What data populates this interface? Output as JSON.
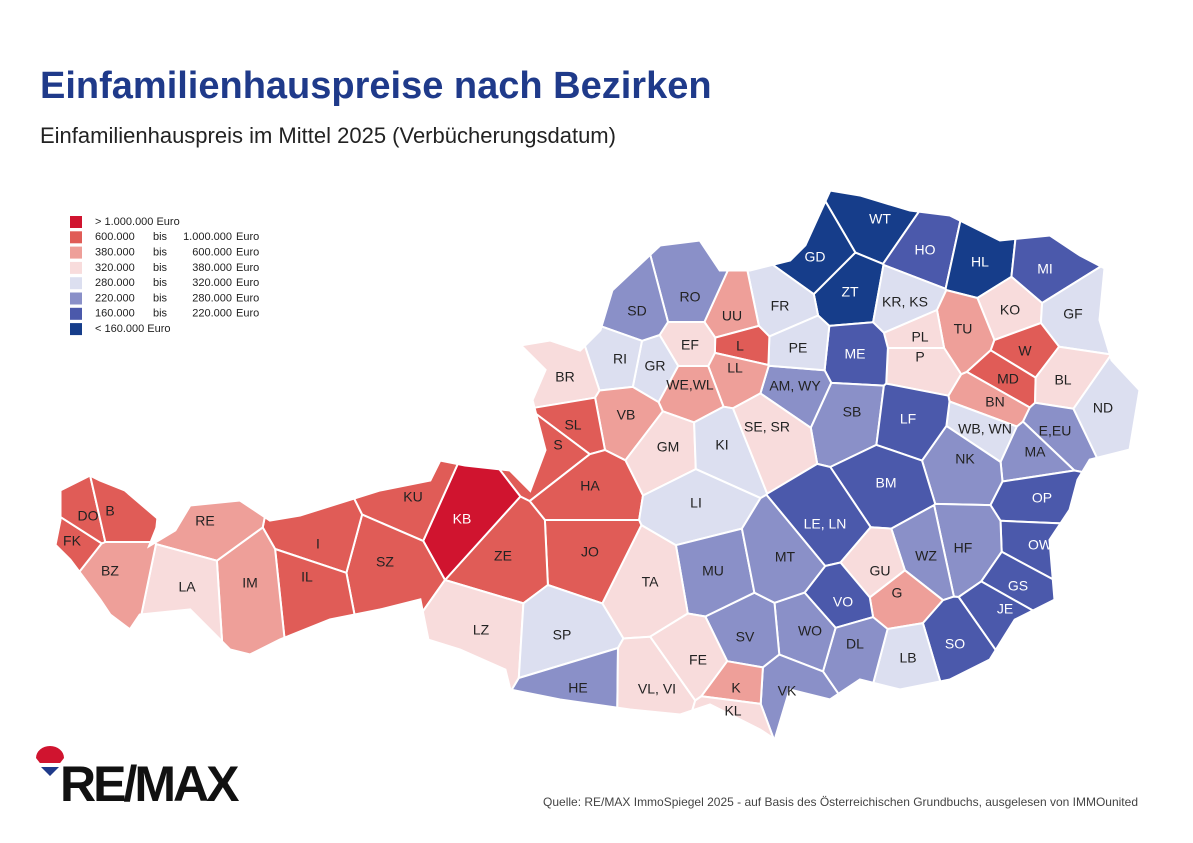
{
  "header": {
    "title": "Einfamilienhauspreise nach Bezirken",
    "subtitle": "Einfamilienhauspreis im Mittel 2025 (Verbücherungsdatum)"
  },
  "legend": {
    "items": [
      {
        "color": "#d0142f",
        "texts": [
          "> 1.000.000 Euro"
        ]
      },
      {
        "color": "#e05c57",
        "texts": [
          "600.000",
          "bis",
          "1.000.000",
          "Euro"
        ]
      },
      {
        "color": "#ee9f99",
        "texts": [
          "380.000",
          "bis",
          "600.000",
          "Euro"
        ]
      },
      {
        "color": "#f8dcdc",
        "texts": [
          "320.000",
          "bis",
          "380.000",
          "Euro"
        ]
      },
      {
        "color": "#dcdff0",
        "texts": [
          "280.000",
          "bis",
          "320.000",
          "Euro"
        ]
      },
      {
        "color": "#8a90c8",
        "texts": [
          "220.000",
          "bis",
          "280.000",
          "Euro"
        ]
      },
      {
        "color": "#4b59ab",
        "texts": [
          "160.000",
          "bis",
          "220.000",
          "Euro"
        ]
      },
      {
        "color": "#163d8a",
        "texts": [
          "< 160.000  Euro"
        ]
      }
    ]
  },
  "districts": [
    {
      "label": "WT",
      "color": "#163d8a"
    },
    {
      "label": "GD",
      "color": "#163d8a"
    },
    {
      "label": "ZT",
      "color": "#163d8a"
    },
    {
      "label": "HO",
      "color": "#4b59ab"
    },
    {
      "label": "HL",
      "color": "#163d8a"
    },
    {
      "label": "MI",
      "color": "#4b59ab"
    },
    {
      "label": "KR, KS",
      "color": "#dcdff0"
    },
    {
      "label": "KO",
      "color": "#f8dcdc"
    },
    {
      "label": "GF",
      "color": "#dcdff0"
    },
    {
      "label": "TU",
      "color": "#ee9f99"
    },
    {
      "label": "PL",
      "color": "#f8dcdc"
    },
    {
      "label": "P",
      "color": "#f8dcdc"
    },
    {
      "label": "W",
      "color": "#e05c57"
    },
    {
      "label": "MD",
      "color": "#e05c57"
    },
    {
      "label": "BL",
      "color": "#f8dcdc"
    },
    {
      "label": "BN",
      "color": "#ee9f99"
    },
    {
      "label": "ND",
      "color": "#dcdff0"
    },
    {
      "label": "E,EU",
      "color": "#8a90c8"
    },
    {
      "label": "WB, WN",
      "color": "#dcdff0"
    },
    {
      "label": "MA",
      "color": "#8a90c8"
    },
    {
      "label": "NK",
      "color": "#8a90c8"
    },
    {
      "label": "ME",
      "color": "#4b59ab"
    },
    {
      "label": "AM, WY",
      "color": "#8a90c8"
    },
    {
      "label": "SB",
      "color": "#8a90c8"
    },
    {
      "label": "LF",
      "color": "#4b59ab"
    },
    {
      "label": "FR",
      "color": "#dcdff0"
    },
    {
      "label": "PE",
      "color": "#dcdff0"
    },
    {
      "label": "UU",
      "color": "#ee9f99"
    },
    {
      "label": "L",
      "color": "#e05c57"
    },
    {
      "label": "LL",
      "color": "#ee9f99"
    },
    {
      "label": "EF",
      "color": "#f8dcdc"
    },
    {
      "label": "GR",
      "color": "#dcdff0"
    },
    {
      "label": "WE,WL",
      "color": "#ee9f99"
    },
    {
      "label": "RO",
      "color": "#8a90c8"
    },
    {
      "label": "SD",
      "color": "#8a90c8"
    },
    {
      "label": "RI",
      "color": "#dcdff0"
    },
    {
      "label": "BR",
      "color": "#f8dcdc"
    },
    {
      "label": "VB",
      "color": "#ee9f99"
    },
    {
      "label": "SL",
      "color": "#e05c57"
    },
    {
      "label": "S",
      "color": "#e05c57"
    },
    {
      "label": "GM",
      "color": "#f8dcdc"
    },
    {
      "label": "KI",
      "color": "#dcdff0"
    },
    {
      "label": "SE, SR",
      "color": "#f8dcdc"
    },
    {
      "label": "HA",
      "color": "#e05c57"
    },
    {
      "label": "LI",
      "color": "#dcdff0"
    },
    {
      "label": "BM",
      "color": "#4b59ab"
    },
    {
      "label": "LE, LN",
      "color": "#4b59ab"
    },
    {
      "label": "OP",
      "color": "#4b59ab"
    },
    {
      "label": "OW",
      "color": "#4b59ab"
    },
    {
      "label": "HF",
      "color": "#8a90c8"
    },
    {
      "label": "WZ",
      "color": "#8a90c8"
    },
    {
      "label": "GU",
      "color": "#f8dcdc"
    },
    {
      "label": "G",
      "color": "#ee9f99"
    },
    {
      "label": "GS",
      "color": "#4b59ab"
    },
    {
      "label": "JE",
      "color": "#4b59ab"
    },
    {
      "label": "VO",
      "color": "#4b59ab"
    },
    {
      "label": "SO",
      "color": "#4b59ab"
    },
    {
      "label": "LB",
      "color": "#dcdff0"
    },
    {
      "label": "DL",
      "color": "#8a90c8"
    },
    {
      "label": "WO",
      "color": "#8a90c8"
    },
    {
      "label": "SV",
      "color": "#8a90c8"
    },
    {
      "label": "VK",
      "color": "#8a90c8"
    },
    {
      "label": "MU",
      "color": "#8a90c8"
    },
    {
      "label": "MT",
      "color": "#8a90c8"
    },
    {
      "label": "TA",
      "color": "#f8dcdc"
    },
    {
      "label": "JO",
      "color": "#e05c57"
    },
    {
      "label": "ZE",
      "color": "#e05c57"
    },
    {
      "label": "KB",
      "color": "#d0142f"
    },
    {
      "label": "KU",
      "color": "#e05c57"
    },
    {
      "label": "SZ",
      "color": "#e05c57"
    },
    {
      "label": "I",
      "color": "#e05c57"
    },
    {
      "label": "IL",
      "color": "#e05c57"
    },
    {
      "label": "IM",
      "color": "#ee9f99"
    },
    {
      "label": "RE",
      "color": "#ee9f99"
    },
    {
      "label": "LA",
      "color": "#f8dcdc"
    },
    {
      "label": "BZ",
      "color": "#ee9f99"
    },
    {
      "label": "FK",
      "color": "#e05c57"
    },
    {
      "label": "DO",
      "color": "#e05c57"
    },
    {
      "label": "B",
      "color": "#e05c57"
    },
    {
      "label": "LZ",
      "color": "#f8dcdc"
    },
    {
      "label": "SP",
      "color": "#dcdff0"
    },
    {
      "label": "HE",
      "color": "#8a90c8"
    },
    {
      "label": "FE",
      "color": "#f8dcdc"
    },
    {
      "label": "VL, VI",
      "color": "#f8dcdc"
    },
    {
      "label": "K",
      "color": "#ee9f99"
    },
    {
      "label": "KL",
      "color": "#f8dcdc"
    }
  ],
  "footer": {
    "logo": "RE/MAX",
    "source": "Quelle: RE/MAX ImmoSpiegel 2025 - auf Basis des Österreichischen Grundbuchs, ausgelesen von IMMOunited"
  }
}
